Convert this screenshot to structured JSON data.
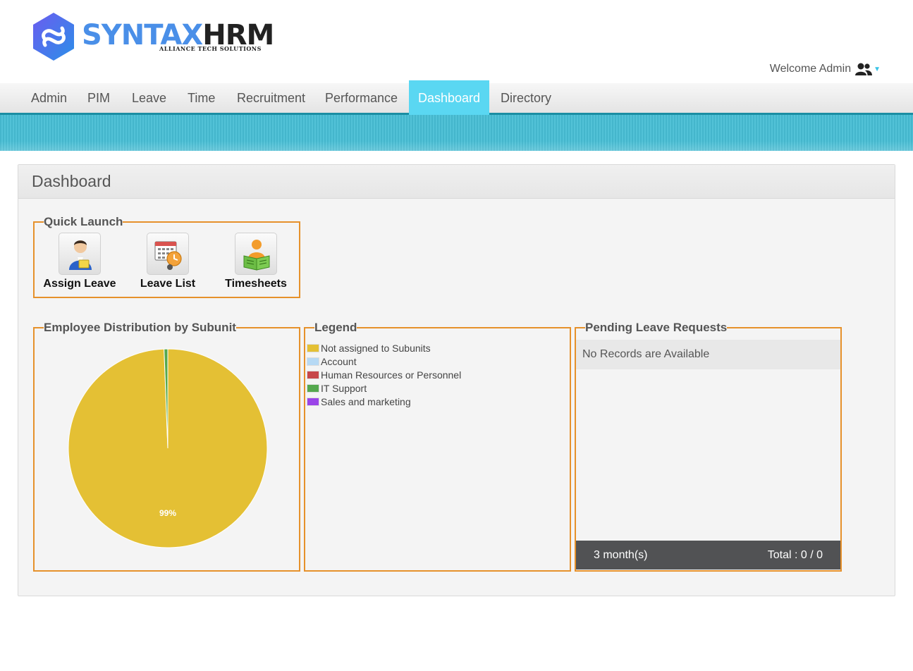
{
  "brand": {
    "name_part1": "SYNTAX",
    "name_part2": "HRM",
    "tagline": "ALLIANCE TECH SOLUTIONS"
  },
  "user_menu": {
    "welcome_text": "Welcome Admin",
    "icon": "users-icon"
  },
  "nav": {
    "items": [
      {
        "label": "Admin"
      },
      {
        "label": "PIM"
      },
      {
        "label": "Leave"
      },
      {
        "label": "Time"
      },
      {
        "label": "Recruitment"
      },
      {
        "label": "Performance"
      },
      {
        "label": "Dashboard",
        "active": true
      },
      {
        "label": "Directory"
      }
    ],
    "active_color": "#5ad7f2"
  },
  "page": {
    "title": "Dashboard"
  },
  "quick_launch": {
    "title": "Quick Launch",
    "items": [
      {
        "label": "Assign Leave",
        "icon": "assign-leave-icon"
      },
      {
        "label": "Leave List",
        "icon": "leave-list-icon"
      },
      {
        "label": "Timesheets",
        "icon": "timesheets-icon"
      }
    ]
  },
  "distribution": {
    "title": "Employee Distribution by Subunit",
    "slice_label": "99%"
  },
  "chart_data": {
    "type": "pie",
    "slices": [
      {
        "name": "Not assigned to Subunits",
        "value": 99.4,
        "color": "#e4c034"
      },
      {
        "name": "Account",
        "value": 0,
        "color": "#b6d9f4"
      },
      {
        "name": "Human Resources or Personnel",
        "value": 0,
        "color": "#c7474a"
      },
      {
        "name": "IT Support",
        "value": 0.6,
        "color": "#55a84e"
      },
      {
        "name": "Sales and marketing",
        "value": 0,
        "color": "#9a44e8"
      }
    ]
  },
  "legend": {
    "title": "Legend",
    "items": [
      {
        "label": "Not assigned to Subunits",
        "color": "#e4c034"
      },
      {
        "label": "Account",
        "color": "#b6d9f4"
      },
      {
        "label": "Human Resources or Personnel",
        "color": "#c7474a"
      },
      {
        "label": "IT Support",
        "color": "#55a84e"
      },
      {
        "label": "Sales and marketing",
        "color": "#9a44e8"
      }
    ]
  },
  "pending": {
    "title": "Pending Leave Requests",
    "empty_text": "No Records are Available",
    "period": "3 month(s)",
    "total": "Total : 0 / 0"
  },
  "colors": {
    "accent_border": "#e6912b",
    "banner": "#4bbdd2",
    "footer_bar": "#515254"
  }
}
